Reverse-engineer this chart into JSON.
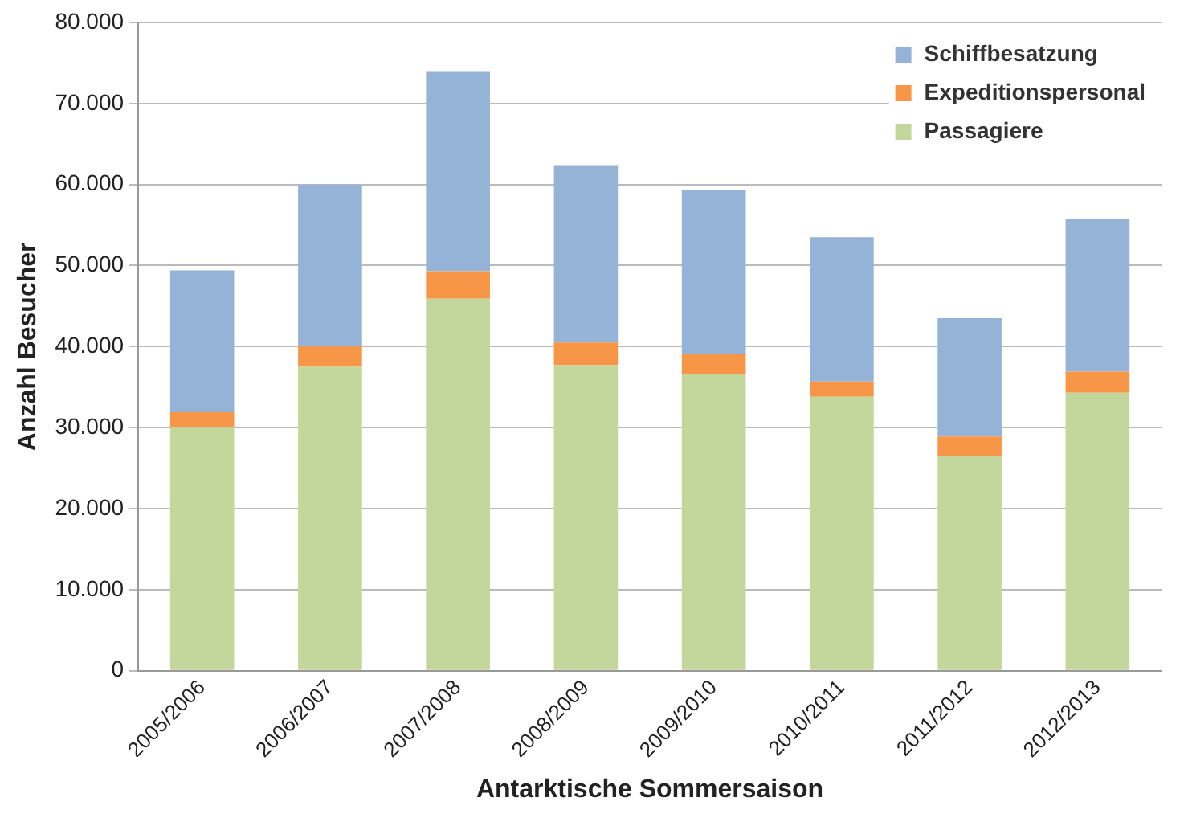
{
  "chart_data": {
    "type": "bar",
    "stacked": true,
    "xlabel": "Antarktische Sommersaison",
    "ylabel": "Anzahl Besucher",
    "categories": [
      "2005/2006",
      "2006/2007",
      "2007/2008",
      "2008/2009",
      "2009/2010",
      "2010/2011",
      "2011/2012",
      "2012/2013"
    ],
    "series": [
      {
        "name": "Passagiere",
        "color": "#c3d69b",
        "values": [
          30000,
          37500,
          45900,
          37700,
          36600,
          33800,
          26500,
          34300
        ]
      },
      {
        "name": "Expeditionspersonal",
        "color": "#f79646",
        "values": [
          1900,
          2500,
          3400,
          2800,
          2500,
          1900,
          2400,
          2600
        ]
      },
      {
        "name": "Schiffbesatzung",
        "color": "#95b3d7",
        "values": [
          17500,
          20000,
          24700,
          21900,
          20200,
          17800,
          14600,
          18800
        ]
      }
    ],
    "ylim": [
      0,
      80000
    ],
    "yticks": [
      0,
      {
        "value": 10000,
        "label": "10.000"
      },
      {
        "value": 20000,
        "label": "20.000"
      },
      {
        "value": 30000,
        "label": "30.000"
      },
      {
        "value": 40000,
        "label": "40.000"
      },
      {
        "value": 50000,
        "label": "50.000"
      },
      {
        "value": 60000,
        "label": "60.000"
      },
      {
        "value": 70000,
        "label": "70.000"
      },
      {
        "value": 80000,
        "label": "80.000"
      }
    ],
    "grid": "y",
    "legend": "top right"
  }
}
